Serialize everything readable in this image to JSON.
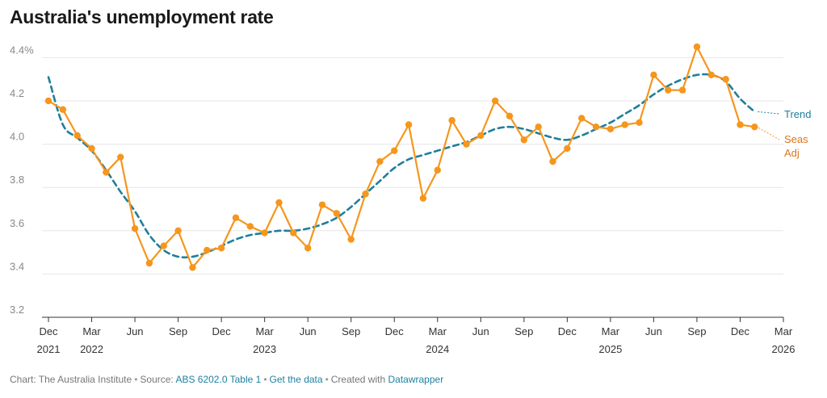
{
  "title": "Australia's unemployment rate",
  "footer": {
    "chart_prefix": "Chart: The Australia Institute",
    "source_prefix": "Source:",
    "source_link": "ABS 6202.0 Table 1",
    "get_data": "Get the data",
    "created_prefix": "Created with",
    "created_link": "Datawrapper"
  },
  "colors": {
    "seas_adj": "#f5961d",
    "trend": "#1f7f9a",
    "grid": "#e6e6e6",
    "axis_text": "#888888"
  },
  "chart_data": {
    "type": "line",
    "title": "Australia's unemployment rate",
    "xlabel": "",
    "ylabel": "",
    "ylim": [
      3.2,
      4.45
    ],
    "y_ticks": [
      {
        "value": 4.4,
        "label": "4.4%"
      },
      {
        "value": 4.2,
        "label": "4.2"
      },
      {
        "value": 4.0,
        "label": "4.0"
      },
      {
        "value": 3.8,
        "label": "3.8"
      },
      {
        "value": 3.6,
        "label": "3.6"
      },
      {
        "value": 3.4,
        "label": "3.4"
      },
      {
        "value": 3.2,
        "label": "3.2"
      }
    ],
    "x_ticks": [
      {
        "date": "2021-12",
        "label": "Dec",
        "year": "2021"
      },
      {
        "date": "2022-03",
        "label": "Mar",
        "year": "2022"
      },
      {
        "date": "2022-06",
        "label": "Jun",
        "year": ""
      },
      {
        "date": "2022-09",
        "label": "Sep",
        "year": ""
      },
      {
        "date": "2022-12",
        "label": "Dec",
        "year": ""
      },
      {
        "date": "2023-03",
        "label": "Mar",
        "year": "2023"
      },
      {
        "date": "2023-06",
        "label": "Jun",
        "year": ""
      },
      {
        "date": "2023-09",
        "label": "Sep",
        "year": ""
      },
      {
        "date": "2023-12",
        "label": "Dec",
        "year": ""
      },
      {
        "date": "2024-03",
        "label": "Mar",
        "year": "2024"
      },
      {
        "date": "2024-06",
        "label": "Jun",
        "year": ""
      },
      {
        "date": "2024-09",
        "label": "Sep",
        "year": ""
      },
      {
        "date": "2024-12",
        "label": "Dec",
        "year": ""
      },
      {
        "date": "2025-03",
        "label": "Mar",
        "year": "2025"
      },
      {
        "date": "2025-06",
        "label": "Jun",
        "year": ""
      },
      {
        "date": "2025-09",
        "label": "Sep",
        "year": ""
      },
      {
        "date": "2025-12",
        "label": "Dec",
        "year": ""
      },
      {
        "date": "2026-03",
        "label": "Mar",
        "year": "2026"
      }
    ],
    "x": [
      "2021-12",
      "2022-01",
      "2022-02",
      "2022-03",
      "2022-04",
      "2022-05",
      "2022-06",
      "2022-07",
      "2022-08",
      "2022-09",
      "2022-10",
      "2022-11",
      "2022-12",
      "2023-01",
      "2023-02",
      "2023-03",
      "2023-04",
      "2023-05",
      "2023-06",
      "2023-07",
      "2023-08",
      "2023-09",
      "2023-10",
      "2023-11",
      "2023-12",
      "2024-01",
      "2024-02",
      "2024-03",
      "2024-04",
      "2024-05",
      "2024-06",
      "2024-07",
      "2024-08",
      "2024-09",
      "2024-10",
      "2024-11",
      "2024-12",
      "2025-01",
      "2025-02",
      "2025-03",
      "2025-04",
      "2025-05",
      "2025-06",
      "2025-07",
      "2025-08",
      "2025-09",
      "2025-10",
      "2025-11",
      "2025-12",
      "2026-01"
    ],
    "series": [
      {
        "name": "Seas Adj",
        "label_lines": [
          "Seas",
          "Adj"
        ],
        "style": "solid-markers",
        "values": [
          4.2,
          4.16,
          4.04,
          3.98,
          3.87,
          3.94,
          3.61,
          3.45,
          3.53,
          3.6,
          3.43,
          3.51,
          3.52,
          3.66,
          3.62,
          3.59,
          3.73,
          3.59,
          3.52,
          3.72,
          3.68,
          3.56,
          3.77,
          3.92,
          3.97,
          4.09,
          3.75,
          3.88,
          4.11,
          4.0,
          4.04,
          4.2,
          4.13,
          4.02,
          4.08,
          3.92,
          3.98,
          4.12,
          4.08,
          4.07,
          4.09,
          4.1,
          4.32,
          4.25,
          4.25,
          4.45,
          4.32,
          4.3,
          4.09,
          4.08
        ]
      },
      {
        "name": "Trend",
        "label_lines": [
          "Trend"
        ],
        "style": "dashed",
        "values": [
          4.31,
          4.09,
          4.03,
          3.97,
          3.88,
          3.78,
          3.69,
          3.58,
          3.51,
          3.48,
          3.48,
          3.5,
          3.53,
          3.56,
          3.58,
          3.59,
          3.6,
          3.6,
          3.61,
          3.63,
          3.66,
          3.71,
          3.77,
          3.83,
          3.89,
          3.93,
          3.95,
          3.97,
          3.99,
          4.01,
          4.04,
          4.07,
          4.08,
          4.07,
          4.05,
          4.03,
          4.02,
          4.04,
          4.07,
          4.1,
          4.14,
          4.18,
          4.23,
          4.27,
          4.3,
          4.32,
          4.32,
          4.29,
          4.21,
          4.15
        ]
      }
    ],
    "legend": "inline-right",
    "grid": "horizontal"
  }
}
